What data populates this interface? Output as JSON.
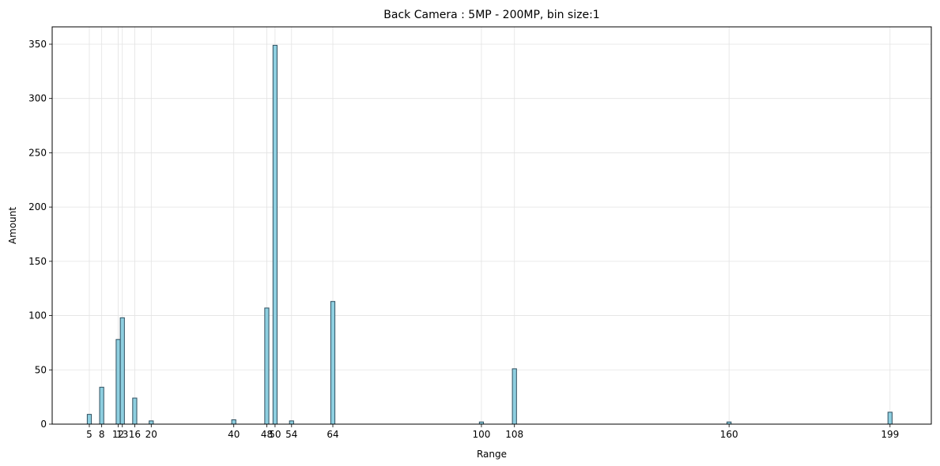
{
  "chart_data": {
    "type": "bar",
    "title": "Back Camera : 5MP - 200MP, bin size:1",
    "xlabel": "Range",
    "ylabel": "Amount",
    "bin_size": 1,
    "xlim": [
      -4,
      209
    ],
    "ylim": [
      0,
      366
    ],
    "grid": true,
    "xticks": [
      5,
      8,
      12,
      13,
      16,
      20,
      40,
      48,
      50,
      54,
      64,
      100,
      108,
      160,
      199
    ],
    "yticks": [
      0,
      50,
      100,
      150,
      200,
      250,
      300,
      350
    ],
    "bins": [
      {
        "x": 5,
        "value": 9
      },
      {
        "x": 8,
        "value": 34
      },
      {
        "x": 12,
        "value": 78
      },
      {
        "x": 13,
        "value": 98
      },
      {
        "x": 16,
        "value": 24
      },
      {
        "x": 20,
        "value": 3
      },
      {
        "x": 40,
        "value": 4
      },
      {
        "x": 48,
        "value": 107
      },
      {
        "x": 50,
        "value": 349
      },
      {
        "x": 54,
        "value": 3
      },
      {
        "x": 64,
        "value": 113
      },
      {
        "x": 100,
        "value": 2
      },
      {
        "x": 108,
        "value": 51
      },
      {
        "x": 160,
        "value": 2
      },
      {
        "x": 199,
        "value": 11
      }
    ],
    "colors": {
      "bar_fill": "#8ecfe0",
      "bar_edge": "#2f4f5f",
      "grid": "#e3e3e3",
      "axis": "#000000"
    }
  }
}
